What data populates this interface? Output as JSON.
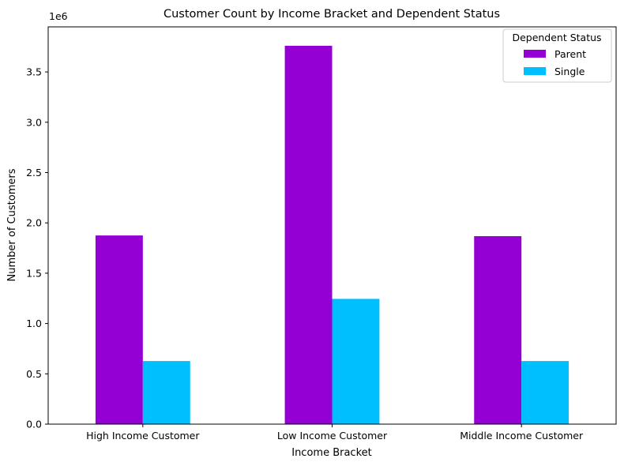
{
  "chart_data": {
    "type": "bar",
    "title": "Customer Count by Income Bracket and Dependent Status",
    "xlabel": "Income Bracket",
    "ylabel": "Number of Customers",
    "y_offset_label": "1e6",
    "y_scale": 1000000,
    "categories": [
      "High Income Customer",
      "Low Income Customer",
      "Middle Income Customer"
    ],
    "series": [
      {
        "name": "Parent",
        "color": "#9400d3",
        "values": [
          1875000,
          3760000,
          1868000
        ]
      },
      {
        "name": "Single",
        "color": "#00bfff",
        "values": [
          627000,
          1245000,
          627000
        ]
      }
    ],
    "ylim": [
      0,
      3948000
    ],
    "yticks": [
      0,
      500000,
      1000000,
      1500000,
      2000000,
      2500000,
      3000000,
      3500000
    ],
    "ytick_labels": [
      "0.0",
      "0.5",
      "1.0",
      "1.5",
      "2.0",
      "2.5",
      "3.0",
      "3.5"
    ],
    "grid": false,
    "legend": {
      "title": "Dependent Status",
      "placement": "top-right"
    }
  }
}
